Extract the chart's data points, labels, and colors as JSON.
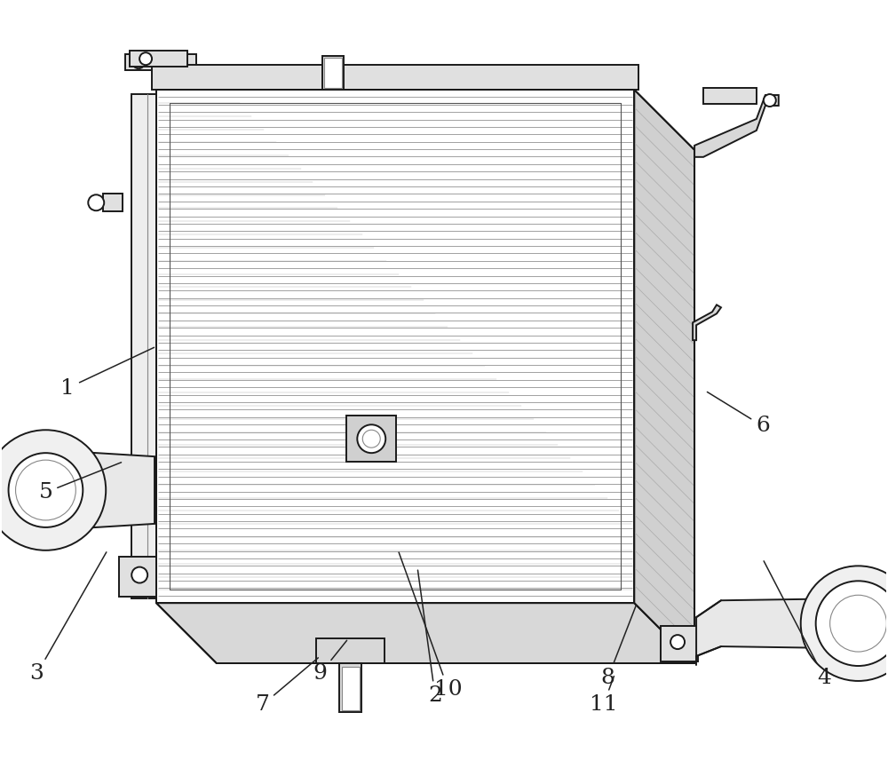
{
  "bg_color": "#ffffff",
  "line_color": "#1a1a1a",
  "label_fontsize": 18,
  "fig_width": 10.0,
  "fig_height": 8.74,
  "lw": 1.4
}
